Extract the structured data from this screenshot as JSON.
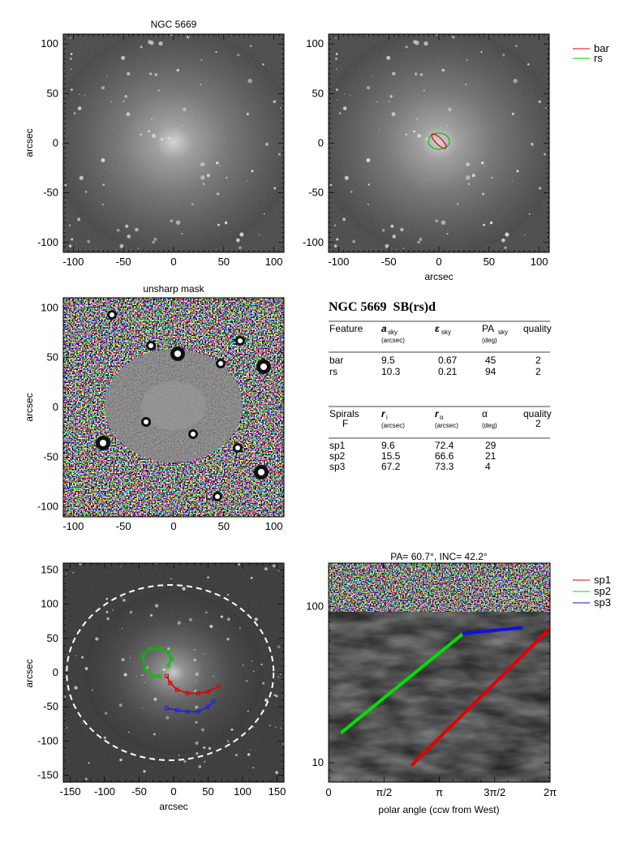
{
  "chart_data": [
    {
      "type": "image",
      "panel": "top-left",
      "title": "NGC 5669",
      "xlabel": "",
      "ylabel": "arcsec",
      "xlim": [
        -110,
        110
      ],
      "ylim": [
        -110,
        110
      ],
      "xticks": [
        "-100",
        "-50",
        "0",
        "50",
        "100"
      ],
      "yticks": [
        "-100",
        "-50",
        "0",
        "50",
        "100"
      ]
    },
    {
      "type": "image",
      "panel": "top-right",
      "title": "",
      "xlabel": "arcsec",
      "ylabel": "",
      "xlim": [
        -110,
        110
      ],
      "ylim": [
        -110,
        110
      ],
      "xticks": [
        "-100",
        "-50",
        "0",
        "50",
        "100"
      ],
      "yticks": [
        "-100",
        "-50",
        "0",
        "50",
        "100"
      ],
      "legend": [
        {
          "name": "bar",
          "color": "#e00000"
        },
        {
          "name": "rs",
          "color": "#00c000"
        }
      ],
      "ellipses": [
        {
          "name": "bar",
          "a": 9.5,
          "ellipticity": 0.67,
          "pa": 45
        },
        {
          "name": "rs",
          "a": 10.3,
          "ellipticity": 0.21,
          "pa": 94
        }
      ]
    },
    {
      "type": "image",
      "panel": "middle-left",
      "title": "unsharp mask",
      "xlabel": "",
      "ylabel": "arcsec",
      "xlim": [
        -110,
        110
      ],
      "ylim": [
        -110,
        110
      ],
      "xticks": [
        "-100",
        "-50",
        "0",
        "50",
        "100"
      ],
      "yticks": [
        "-100",
        "-50",
        "0",
        "50",
        "100"
      ]
    },
    {
      "type": "image",
      "panel": "bottom-left",
      "title": "",
      "xlabel": "arcsec",
      "ylabel": "arcsec",
      "xlim": [
        -160,
        160
      ],
      "ylim": [
        -160,
        160
      ],
      "xticks": [
        "-150",
        "-100",
        "-50",
        "0",
        "50",
        "100",
        "150"
      ],
      "yticks": [
        "-150",
        "-100",
        "-50",
        "0",
        "50",
        "100",
        "150"
      ],
      "arms": [
        {
          "name": "sp1",
          "color": "#e00000",
          "points": [
            [
              -10,
              -5
            ],
            [
              -5,
              -15
            ],
            [
              5,
              -25
            ],
            [
              20,
              -30
            ],
            [
              35,
              -30
            ],
            [
              50,
              -28
            ],
            [
              65,
              -20
            ]
          ]
        },
        {
          "name": "sp2",
          "color": "#00c000",
          "points": [
            [
              -20,
              -5
            ],
            [
              -30,
              -5
            ],
            [
              -42,
              5
            ],
            [
              -45,
              25
            ],
            [
              -35,
              35
            ],
            [
              -20,
              35
            ],
            [
              -8,
              30
            ],
            [
              -3,
              20
            ],
            [
              -8,
              10
            ]
          ]
        },
        {
          "name": "sp3",
          "color": "#2020e0",
          "points": [
            [
              -10,
              -52
            ],
            [
              5,
              -55
            ],
            [
              20,
              -57
            ],
            [
              35,
              -57
            ],
            [
              50,
              -50
            ],
            [
              58,
              -42
            ]
          ]
        }
      ],
      "outer_ellipse": {
        "center": [
          -5,
          0
        ],
        "semi_axes": [
          150,
          128
        ],
        "color": "#ffffff",
        "style": "dashed"
      }
    },
    {
      "type": "line",
      "panel": "bottom-right",
      "title": "PA= 60.7°, INC= 42.2°",
      "xlabel": "polar angle (ccw from West)",
      "ylabel": "",
      "xlim": [
        0,
        6.2832
      ],
      "ylim": [
        7.5,
        190
      ],
      "yscale": "log",
      "xticks": [
        {
          "label": "0",
          "value": 0
        },
        {
          "label": "π/2",
          "value": 1.5708
        },
        {
          "label": "π",
          "value": 3.1416
        },
        {
          "label": "3π/2",
          "value": 4.7124
        },
        {
          "label": "2π",
          "value": 6.2832
        }
      ],
      "yticks": [
        {
          "label": "10",
          "value": 10
        },
        {
          "label": "100",
          "value": 100
        }
      ],
      "series": [
        {
          "name": "sp1",
          "color": "#e00000",
          "x": [
            2.35,
            6.28
          ],
          "y": [
            9.6,
            72.4
          ]
        },
        {
          "name": "sp2",
          "color": "#00e000",
          "x": [
            0.35,
            3.8
          ],
          "y": [
            15.5,
            66.6
          ]
        },
        {
          "name": "sp3",
          "color": "#1010e0",
          "x": [
            3.8,
            5.5
          ],
          "y": [
            67.2,
            73.3
          ]
        }
      ]
    }
  ],
  "info_table": {
    "title": "NGC 5669  SB(rs)d",
    "features_header": {
      "feature": "Feature",
      "a": "a",
      "a_sub": "sky",
      "a_unit": "(arcsec)",
      "eps": "ε",
      "eps_sub": "sky",
      "pa": "PA",
      "pa_sub": "sky",
      "pa_unit": "(deg)",
      "quality": "quality"
    },
    "features": [
      {
        "name": "bar",
        "a": "9.5",
        "eps": "0.67",
        "pa": "45",
        "quality": "2"
      },
      {
        "name": "rs",
        "a": "10.3",
        "eps": "0.21",
        "pa": "94",
        "quality": "2"
      }
    ],
    "spirals_header": {
      "spirals": "Spirals",
      "f": "F",
      "ri": "r",
      "ri_sub": "i",
      "ri_unit": "(arcsec)",
      "ro": "r",
      "ro_sub": "o",
      "ro_unit": "(arcsec)",
      "alpha": "α",
      "alpha_unit": "(deg)",
      "quality": "quality",
      "quality_val": "2"
    },
    "spirals": [
      {
        "name": "sp1",
        "ri": "9.6",
        "ro": "72.4",
        "alpha": "29"
      },
      {
        "name": "sp2",
        "ri": "15.5",
        "ro": "66.6",
        "alpha": "21"
      },
      {
        "name": "sp3",
        "ri": "67.2",
        "ro": "73.3",
        "alpha": "4"
      }
    ]
  }
}
